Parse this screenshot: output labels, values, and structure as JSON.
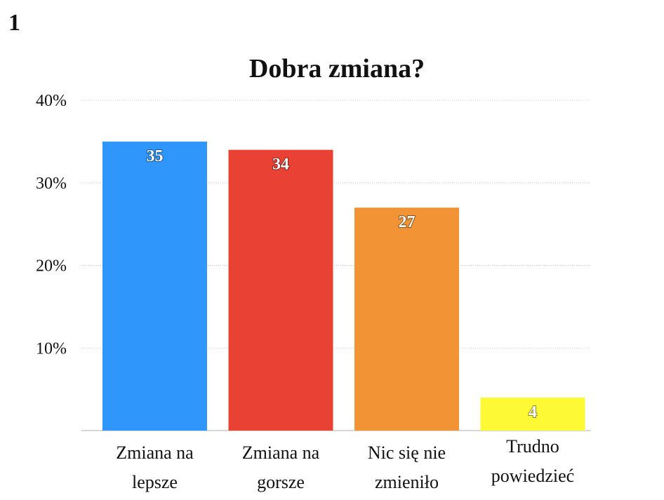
{
  "slide": {
    "number": "1"
  },
  "chart_data": {
    "type": "bar",
    "title": "Dobra zmiana?",
    "xlabel": "",
    "ylabel": "",
    "categories": [
      [
        "Zmiana na",
        "lepsze"
      ],
      [
        "Zmiana na",
        "gorsze"
      ],
      [
        "Nic się nie",
        "zmieniło"
      ],
      [
        "Trudno",
        "powiedzieć"
      ]
    ],
    "values": [
      35,
      34,
      27,
      4
    ],
    "data_labels": [
      "35",
      "34",
      "27",
      "4"
    ],
    "colors": [
      "#2f96fb",
      "#e94134",
      "#f29435",
      "#fdf935"
    ],
    "ylim": [
      0,
      40
    ],
    "yticks": [
      10,
      20,
      30,
      40
    ],
    "ytick_labels": [
      "10%",
      "20%",
      "30%",
      "40%"
    ],
    "grid": true,
    "legend": "none"
  }
}
